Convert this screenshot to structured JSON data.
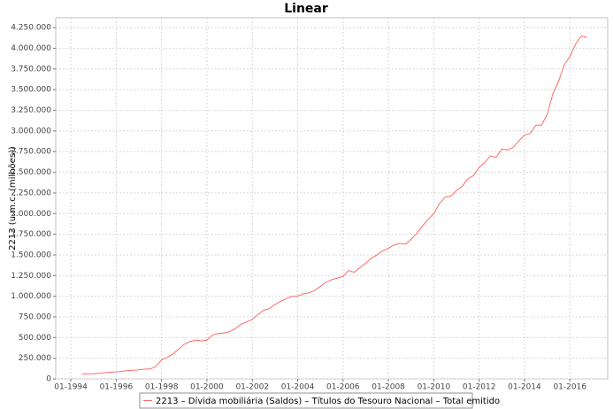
{
  "chart_data": {
    "type": "line",
    "title": "Linear",
    "y_label": "2213 (u.m.c. (milhões))",
    "x": [
      "07-1994",
      "10-1994",
      "01-1995",
      "04-1995",
      "07-1995",
      "10-1995",
      "01-1996",
      "04-1996",
      "07-1996",
      "10-1996",
      "01-1997",
      "04-1997",
      "07-1997",
      "10-1997",
      "01-1998",
      "04-1998",
      "07-1998",
      "10-1998",
      "01-1999",
      "04-1999",
      "07-1999",
      "10-1999",
      "01-2000",
      "04-2000",
      "07-2000",
      "10-2000",
      "01-2001",
      "04-2001",
      "07-2001",
      "10-2001",
      "01-2002",
      "04-2002",
      "07-2002",
      "10-2002",
      "01-2003",
      "04-2003",
      "07-2003",
      "10-2003",
      "01-2004",
      "04-2004",
      "07-2004",
      "10-2004",
      "01-2005",
      "04-2005",
      "07-2005",
      "10-2005",
      "01-2006",
      "04-2006",
      "07-2006",
      "10-2006",
      "01-2007",
      "04-2007",
      "07-2007",
      "10-2007",
      "01-2008",
      "04-2008",
      "07-2008",
      "10-2008",
      "01-2009",
      "04-2009",
      "07-2009",
      "10-2009",
      "01-2010",
      "04-2010",
      "07-2010",
      "10-2010",
      "01-2011",
      "04-2011",
      "07-2011",
      "10-2011",
      "01-2012",
      "04-2012",
      "07-2012",
      "10-2012",
      "01-2013",
      "04-2013",
      "07-2013",
      "10-2013",
      "01-2014",
      "04-2014",
      "07-2014",
      "10-2014",
      "01-2015",
      "04-2015",
      "07-2015",
      "10-2015",
      "01-2016",
      "04-2016",
      "07-2016",
      "10-2016"
    ],
    "series": [
      {
        "name": "2213 – Dívida mobiliária (Saldos) – Títulos do Tesouro Nacional – Total emitido",
        "color": "#ff6a6a",
        "values": [
          60000,
          62000,
          63000,
          68000,
          75000,
          80000,
          85000,
          92000,
          100000,
          105000,
          110000,
          118000,
          120000,
          150000,
          230000,
          260000,
          300000,
          360000,
          420000,
          450000,
          470000,
          460000,
          470000,
          530000,
          550000,
          555000,
          570000,
          610000,
          660000,
          690000,
          720000,
          780000,
          830000,
          850000,
          900000,
          940000,
          970000,
          1000000,
          1000000,
          1030000,
          1040000,
          1070000,
          1120000,
          1170000,
          1200000,
          1220000,
          1240000,
          1310000,
          1290000,
          1350000,
          1400000,
          1460000,
          1500000,
          1550000,
          1580000,
          1620000,
          1640000,
          1630000,
          1690000,
          1760000,
          1850000,
          1930000,
          2000000,
          2120000,
          2200000,
          2210000,
          2280000,
          2330000,
          2420000,
          2460000,
          2560000,
          2620000,
          2700000,
          2680000,
          2780000,
          2770000,
          2800000,
          2880000,
          2950000,
          2970000,
          3070000,
          3070000,
          3200000,
          3450000,
          3600000,
          3800000,
          3900000,
          4050000,
          4150000,
          4130000
        ]
      }
    ],
    "xlim": [
      "05-1993",
      "09-2017"
    ],
    "xticks": [
      "01-1994",
      "01-1996",
      "01-1998",
      "01-2000",
      "01-2002",
      "01-2004",
      "01-2006",
      "01-2008",
      "01-2010",
      "01-2012",
      "01-2014",
      "01-2016"
    ],
    "ylim": [
      0,
      4370000
    ],
    "yticks": [
      0,
      {
        "value": 250000,
        "label": "250.000"
      },
      {
        "value": 500000,
        "label": "500.000"
      },
      {
        "value": 750000,
        "label": "750.000"
      },
      {
        "value": 1000000,
        "label": "1.000.000"
      },
      {
        "value": 1250000,
        "label": "1.250.000"
      },
      {
        "value": 1500000,
        "label": "1.500.000"
      },
      {
        "value": 1750000,
        "label": "1.750.000"
      },
      {
        "value": 2000000,
        "label": "2.000.000"
      },
      {
        "value": 2250000,
        "label": "2.250.000"
      },
      {
        "value": 2500000,
        "label": "2.500.000"
      },
      {
        "value": 2750000,
        "label": "2.750.000"
      },
      {
        "value": 3000000,
        "label": "3.000.000"
      },
      {
        "value": 3250000,
        "label": "3.250.000"
      },
      {
        "value": 3500000,
        "label": "3.500.000"
      },
      {
        "value": 3750000,
        "label": "3.750.000"
      },
      {
        "value": 4000000,
        "label": "4.000.000"
      },
      {
        "value": 4250000,
        "label": "4.250.000"
      }
    ],
    "grid": true,
    "legend": "bottom"
  }
}
